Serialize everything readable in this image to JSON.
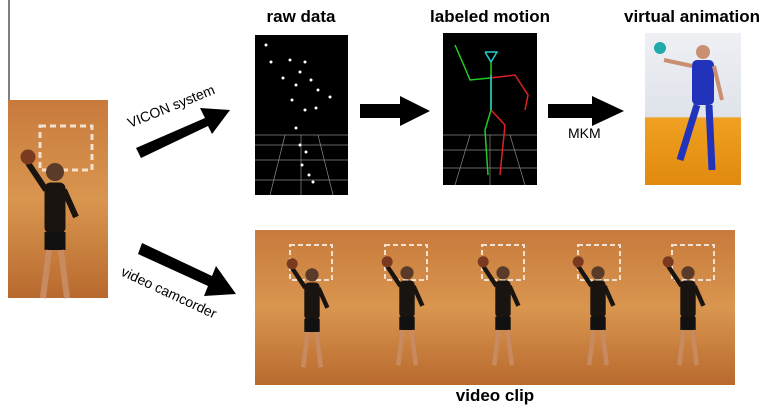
{
  "labels": {
    "raw_data": "raw data",
    "labeled_motion": "labeled motion",
    "virtual_animation": "virtual animation",
    "vicon": "VICON system",
    "camcorder": "video camcorder",
    "mkm": "MKM",
    "video_clip": "video clip"
  }
}
